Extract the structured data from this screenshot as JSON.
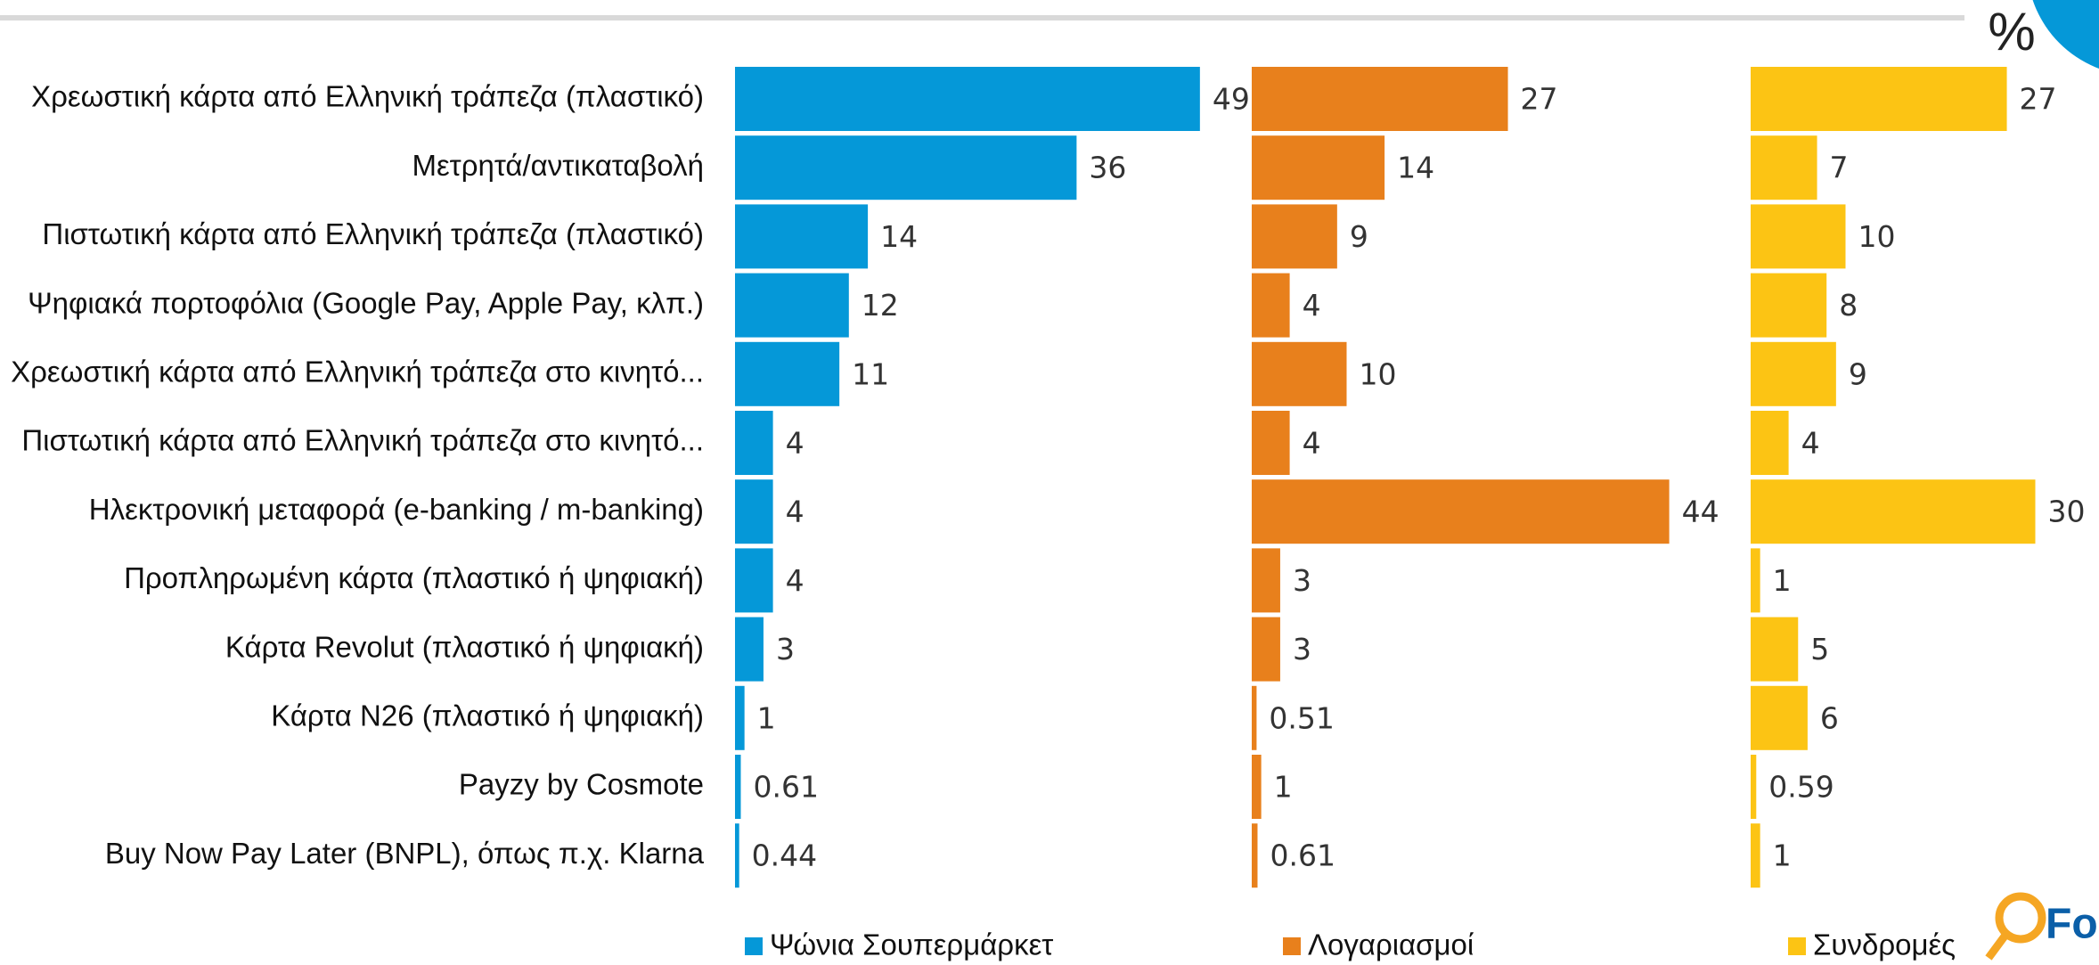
{
  "chart_data": {
    "type": "bar",
    "orientation": "horizontal",
    "unit_label": "%",
    "logo_text": "Fo",
    "categories": [
      "Χρεωστική κάρτα από Ελληνική τράπεζα (πλαστικό)",
      "Μετρητά/αντικαταβολή",
      "Πιστωτική κάρτα από Ελληνική τράπεζα (πλαστικό)",
      "Ψηφιακά πορτοφόλια (Google Pay, Apple Pay, κλπ.)",
      "Χρεωστική κάρτα από Ελληνική τράπεζα στο κινητό...",
      "Πιστωτική κάρτα από Ελληνική τράπεζα στο κινητό...",
      "Ηλεκτρονική μεταφορά (e-banking / m-banking)",
      "Προπληρωμένη κάρτα (πλαστικό ή ψηφιακή)",
      "Κάρτα Revolut (πλαστικό ή ψηφιακή)",
      "Κάρτα N26 (πλαστικό ή ψηφιακή)",
      "Payzy by Cosmote",
      "Buy Now Pay Later (BNPL), όπως π.χ. Klarna"
    ],
    "series": [
      {
        "name": "Ψώνια Σουπερμάρκετ",
        "color": "#0598d8",
        "values": [
          49,
          36,
          14,
          12,
          11,
          4,
          4,
          4,
          3,
          1,
          0.61,
          0.44
        ]
      },
      {
        "name": "Λογαριασμοί",
        "color": "#e8801c",
        "values": [
          27,
          14,
          9,
          4,
          10,
          4,
          44,
          3,
          3,
          0.51,
          1,
          0.61
        ]
      },
      {
        "name": "Συνδρομές",
        "color": "#fcc414",
        "values": [
          27,
          7,
          10,
          8,
          9,
          4,
          30,
          1,
          5,
          6,
          0.59,
          1
        ]
      }
    ]
  }
}
